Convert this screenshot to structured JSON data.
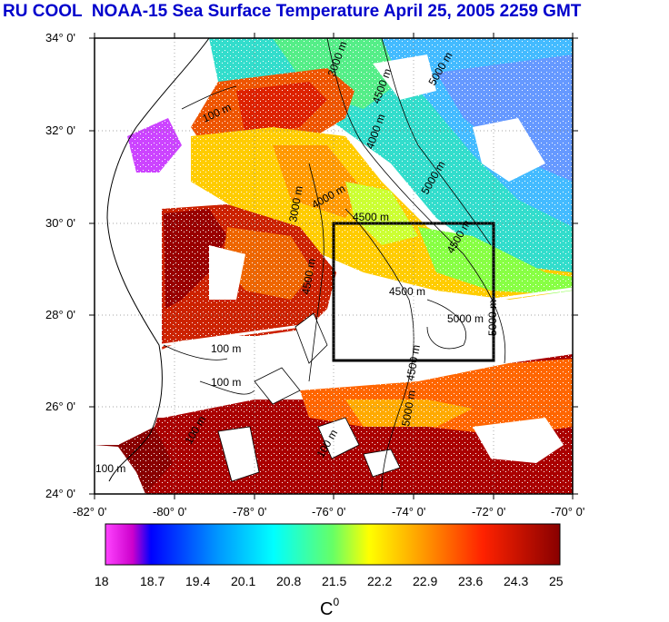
{
  "title": "RU COOL  NOAA-15 Sea Surface Temperature April 25, 2005 2259 GMT",
  "map": {
    "lat_labels": [
      "34° 0'",
      "32° 0'",
      "30° 0'",
      "28° 0'",
      "26° 0'",
      "24° 0'"
    ],
    "lon_labels": [
      "-82° 0'",
      "-80° 0'",
      "-78° 0'",
      "-76° 0'",
      "-74° 0'",
      "-72° 0'",
      "-70° 0'"
    ],
    "depth_labels": [
      "3000 m",
      "5000 m",
      "100 m",
      "4500 m",
      "4000 m",
      "5000 m",
      "4000 m",
      "3000 m",
      "4500 m",
      "4500 m",
      "4500 m",
      "4500 m",
      "5000 m",
      "5000 m",
      "100 m",
      "100 m",
      "4500 m",
      "5000 m",
      "100 m",
      "100 m",
      "100 m"
    ],
    "study_box": {
      "lon_min": -76,
      "lon_max": -72,
      "lat_min": 27,
      "lat_max": 30
    }
  },
  "colorbar": {
    "ticks": [
      "18",
      "18.7",
      "19.4",
      "20.1",
      "20.8",
      "21.5",
      "22.2",
      "22.9",
      "23.6",
      "24.3",
      "25"
    ],
    "unit": "C",
    "unit_sup": "0",
    "colors": [
      "#ff33ff",
      "#0000ff",
      "#0099ff",
      "#00ffff",
      "#66ff66",
      "#ffff00",
      "#ffaa00",
      "#ff4400",
      "#cc0000",
      "#880000"
    ]
  }
}
